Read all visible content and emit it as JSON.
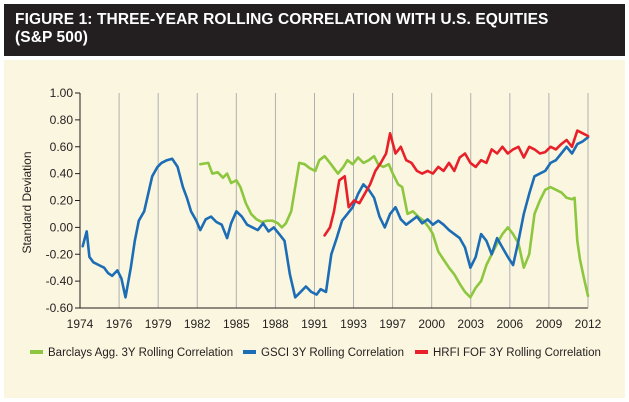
{
  "figure": {
    "title": "FIGURE 1: THREE-YEAR ROLLING CORRELATION WITH U.S. EQUITIES",
    "title_line2": "(S&P 500)"
  },
  "colors": {
    "title_bg": "#231f20",
    "panel_bg": "#fbf6df",
    "barclays": "#8dc63f",
    "gsci": "#1c6db5",
    "hrfi": "#e8202a"
  },
  "chart_data": {
    "type": "line",
    "ylabel": "Standard Deviation",
    "xlabel": "",
    "ylim": [
      -0.6,
      1.0
    ],
    "xlim": [
      1974,
      2012
    ],
    "y_ticks": [
      -0.6,
      -0.4,
      -0.2,
      0.0,
      0.2,
      0.4,
      0.6,
      0.8,
      1.0
    ],
    "y_tick_labels": [
      "-0.60",
      "-0.40",
      "-0.20",
      "0.00",
      "0.20",
      "0.40",
      "0.60",
      "0.80",
      "1.00"
    ],
    "x_tick_labels": [
      "1974",
      "1976",
      "1979",
      "1982",
      "1985",
      "1988",
      "1991",
      "1993",
      "1997",
      "2000",
      "2003",
      "2006",
      "2009",
      "2012"
    ],
    "grid": "vertical",
    "legend_placement": "bottom",
    "series": [
      {
        "name": "Barclays Agg. 3Y Rolling Correlation",
        "color": "#8dc63f",
        "points": [
          [
            1983.0,
            0.47
          ],
          [
            1983.6,
            0.48
          ],
          [
            1983.9,
            0.4
          ],
          [
            1984.3,
            0.41
          ],
          [
            1984.7,
            0.37
          ],
          [
            1985.0,
            0.4
          ],
          [
            1985.3,
            0.33
          ],
          [
            1985.7,
            0.35
          ],
          [
            1986.0,
            0.3
          ],
          [
            1986.4,
            0.18
          ],
          [
            1986.8,
            0.1
          ],
          [
            1987.2,
            0.06
          ],
          [
            1987.6,
            0.04
          ],
          [
            1988.0,
            0.05
          ],
          [
            1988.4,
            0.05
          ],
          [
            1988.8,
            0.03
          ],
          [
            1989.1,
            0.0
          ],
          [
            1989.4,
            0.03
          ],
          [
            1989.8,
            0.12
          ],
          [
            1990.1,
            0.3
          ],
          [
            1990.4,
            0.48
          ],
          [
            1990.8,
            0.47
          ],
          [
            1991.2,
            0.44
          ],
          [
            1991.6,
            0.42
          ],
          [
            1991.9,
            0.5
          ],
          [
            1992.3,
            0.53
          ],
          [
            1992.7,
            0.48
          ],
          [
            1993.0,
            0.44
          ],
          [
            1993.3,
            0.4
          ],
          [
            1993.7,
            0.45
          ],
          [
            1994.0,
            0.5
          ],
          [
            1994.4,
            0.47
          ],
          [
            1994.8,
            0.52
          ],
          [
            1995.2,
            0.48
          ],
          [
            1995.6,
            0.5
          ],
          [
            1996.0,
            0.53
          ],
          [
            1996.3,
            0.47
          ],
          [
            1996.7,
            0.45
          ],
          [
            1997.1,
            0.47
          ],
          [
            1997.4,
            0.4
          ],
          [
            1997.8,
            0.32
          ],
          [
            1998.1,
            0.3
          ],
          [
            1998.5,
            0.1
          ],
          [
            1998.9,
            0.12
          ],
          [
            1999.3,
            0.08
          ],
          [
            1999.7,
            0.05
          ],
          [
            2000.1,
            0.0
          ],
          [
            2000.4,
            -0.05
          ],
          [
            2000.8,
            -0.18
          ],
          [
            2001.2,
            -0.24
          ],
          [
            2001.6,
            -0.3
          ],
          [
            2002.0,
            -0.35
          ],
          [
            2002.4,
            -0.42
          ],
          [
            2002.8,
            -0.48
          ],
          [
            2003.2,
            -0.52
          ],
          [
            2003.6,
            -0.45
          ],
          [
            2004.0,
            -0.4
          ],
          [
            2004.4,
            -0.28
          ],
          [
            2004.8,
            -0.2
          ],
          [
            2005.2,
            -0.12
          ],
          [
            2005.6,
            -0.05
          ],
          [
            2006.0,
            0.0
          ],
          [
            2006.4,
            -0.05
          ],
          [
            2006.8,
            -0.12
          ],
          [
            2007.2,
            -0.3
          ],
          [
            2007.6,
            -0.2
          ],
          [
            2008.0,
            0.1
          ],
          [
            2008.4,
            0.2
          ],
          [
            2008.8,
            0.28
          ],
          [
            2009.2,
            0.3
          ],
          [
            2009.6,
            0.28
          ],
          [
            2010.0,
            0.26
          ],
          [
            2010.4,
            0.22
          ],
          [
            2010.8,
            0.21
          ],
          [
            2011.0,
            0.22
          ],
          [
            2011.2,
            -0.1
          ],
          [
            2011.4,
            -0.24
          ],
          [
            2011.7,
            -0.38
          ],
          [
            2012.0,
            -0.51
          ]
        ]
      },
      {
        "name": "GSCI 3Y Rolling Correlation",
        "color": "#1c6db5",
        "points": [
          [
            1974.2,
            -0.14
          ],
          [
            1974.5,
            -0.03
          ],
          [
            1974.7,
            -0.22
          ],
          [
            1975.0,
            -0.26
          ],
          [
            1975.4,
            -0.28
          ],
          [
            1975.8,
            -0.3
          ],
          [
            1976.1,
            -0.34
          ],
          [
            1976.4,
            -0.36
          ],
          [
            1976.8,
            -0.32
          ],
          [
            1977.1,
            -0.38
          ],
          [
            1977.4,
            -0.52
          ],
          [
            1977.8,
            -0.3
          ],
          [
            1978.1,
            -0.1
          ],
          [
            1978.4,
            0.05
          ],
          [
            1978.8,
            0.12
          ],
          [
            1979.1,
            0.25
          ],
          [
            1979.4,
            0.38
          ],
          [
            1979.8,
            0.45
          ],
          [
            1980.1,
            0.48
          ],
          [
            1980.5,
            0.5
          ],
          [
            1980.9,
            0.51
          ],
          [
            1981.3,
            0.45
          ],
          [
            1981.7,
            0.3
          ],
          [
            1982.0,
            0.22
          ],
          [
            1982.3,
            0.12
          ],
          [
            1982.7,
            0.05
          ],
          [
            1983.0,
            -0.02
          ],
          [
            1983.4,
            0.06
          ],
          [
            1983.8,
            0.08
          ],
          [
            1984.2,
            0.04
          ],
          [
            1984.6,
            0.02
          ],
          [
            1985.0,
            -0.08
          ],
          [
            1985.3,
            0.03
          ],
          [
            1985.7,
            0.12
          ],
          [
            1986.1,
            0.08
          ],
          [
            1986.5,
            0.02
          ],
          [
            1986.9,
            0.0
          ],
          [
            1987.3,
            -0.02
          ],
          [
            1987.7,
            0.03
          ],
          [
            1988.1,
            -0.03
          ],
          [
            1988.5,
            0.0
          ],
          [
            1988.9,
            -0.05
          ],
          [
            1989.3,
            -0.1
          ],
          [
            1989.7,
            -0.35
          ],
          [
            1990.1,
            -0.52
          ],
          [
            1990.5,
            -0.48
          ],
          [
            1990.9,
            -0.44
          ],
          [
            1991.3,
            -0.48
          ],
          [
            1991.7,
            -0.5
          ],
          [
            1992.0,
            -0.46
          ],
          [
            1992.4,
            -0.48
          ],
          [
            1992.8,
            -0.2
          ],
          [
            1993.2,
            -0.08
          ],
          [
            1993.6,
            0.05
          ],
          [
            1994.0,
            0.1
          ],
          [
            1994.4,
            0.15
          ],
          [
            1994.8,
            0.25
          ],
          [
            1995.2,
            0.32
          ],
          [
            1995.6,
            0.28
          ],
          [
            1996.0,
            0.22
          ],
          [
            1996.4,
            0.08
          ],
          [
            1996.8,
            0.0
          ],
          [
            1997.2,
            0.1
          ],
          [
            1997.6,
            0.15
          ],
          [
            1998.0,
            0.06
          ],
          [
            1998.4,
            0.02
          ],
          [
            1998.8,
            0.05
          ],
          [
            1999.2,
            0.08
          ],
          [
            1999.6,
            0.03
          ],
          [
            2000.0,
            0.06
          ],
          [
            2000.4,
            0.02
          ],
          [
            2000.8,
            0.05
          ],
          [
            2001.2,
            0.02
          ],
          [
            2001.6,
            -0.02
          ],
          [
            2002.0,
            -0.05
          ],
          [
            2002.4,
            -0.08
          ],
          [
            2002.8,
            -0.15
          ],
          [
            2003.2,
            -0.3
          ],
          [
            2003.6,
            -0.22
          ],
          [
            2004.0,
            -0.05
          ],
          [
            2004.4,
            -0.1
          ],
          [
            2004.8,
            -0.2
          ],
          [
            2005.2,
            -0.08
          ],
          [
            2005.6,
            -0.15
          ],
          [
            2006.0,
            -0.22
          ],
          [
            2006.4,
            -0.28
          ],
          [
            2006.8,
            -0.1
          ],
          [
            2007.2,
            0.1
          ],
          [
            2007.6,
            0.25
          ],
          [
            2008.0,
            0.38
          ],
          [
            2008.4,
            0.4
          ],
          [
            2008.8,
            0.42
          ],
          [
            2009.2,
            0.48
          ],
          [
            2009.6,
            0.5
          ],
          [
            2010.0,
            0.55
          ],
          [
            2010.4,
            0.6
          ],
          [
            2010.8,
            0.55
          ],
          [
            2011.2,
            0.62
          ],
          [
            2011.6,
            0.64
          ],
          [
            2012.0,
            0.67
          ]
        ]
      },
      {
        "name": "HRFI FOF 3Y Rolling Correlation",
        "color": "#e8202a",
        "points": [
          [
            1992.3,
            -0.06
          ],
          [
            1992.7,
            0.0
          ],
          [
            1993.0,
            0.12
          ],
          [
            1993.4,
            0.35
          ],
          [
            1993.8,
            0.38
          ],
          [
            1994.1,
            0.15
          ],
          [
            1994.5,
            0.2
          ],
          [
            1994.9,
            0.18
          ],
          [
            1995.3,
            0.25
          ],
          [
            1995.7,
            0.32
          ],
          [
            1996.1,
            0.42
          ],
          [
            1996.5,
            0.48
          ],
          [
            1996.9,
            0.55
          ],
          [
            1997.2,
            0.7
          ],
          [
            1997.6,
            0.55
          ],
          [
            1998.0,
            0.6
          ],
          [
            1998.4,
            0.5
          ],
          [
            1998.8,
            0.48
          ],
          [
            1999.2,
            0.42
          ],
          [
            1999.6,
            0.4
          ],
          [
            2000.0,
            0.42
          ],
          [
            2000.4,
            0.4
          ],
          [
            2000.8,
            0.45
          ],
          [
            2001.2,
            0.42
          ],
          [
            2001.6,
            0.48
          ],
          [
            2002.0,
            0.42
          ],
          [
            2002.4,
            0.52
          ],
          [
            2002.8,
            0.55
          ],
          [
            2003.2,
            0.48
          ],
          [
            2003.6,
            0.45
          ],
          [
            2004.0,
            0.5
          ],
          [
            2004.4,
            0.48
          ],
          [
            2004.8,
            0.58
          ],
          [
            2005.2,
            0.55
          ],
          [
            2005.6,
            0.6
          ],
          [
            2006.0,
            0.55
          ],
          [
            2006.4,
            0.58
          ],
          [
            2006.8,
            0.6
          ],
          [
            2007.2,
            0.52
          ],
          [
            2007.6,
            0.6
          ],
          [
            2008.0,
            0.58
          ],
          [
            2008.4,
            0.55
          ],
          [
            2008.8,
            0.56
          ],
          [
            2009.2,
            0.6
          ],
          [
            2009.6,
            0.58
          ],
          [
            2010.0,
            0.62
          ],
          [
            2010.4,
            0.65
          ],
          [
            2010.8,
            0.6
          ],
          [
            2011.2,
            0.72
          ],
          [
            2011.6,
            0.7
          ],
          [
            2012.0,
            0.68
          ]
        ]
      }
    ]
  }
}
